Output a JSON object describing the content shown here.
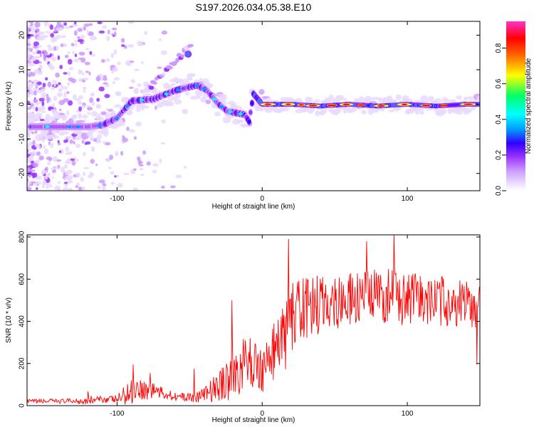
{
  "title": "S197.2026.034.05.38.E10",
  "chart_data": [
    {
      "type": "heatmap",
      "title": "S197.2026.034.05.38.E10",
      "xlabel": "Height of straight line (km)",
      "ylabel": "Frequency (Hz)",
      "xlim": [
        -162,
        150
      ],
      "ylim": [
        -25,
        24
      ],
      "x_ticks": [
        -100,
        0,
        100
      ],
      "x_tick_labels": [
        "-100",
        "0",
        "100"
      ],
      "y_ticks": [
        -20,
        -10,
        0,
        10,
        20
      ],
      "y_tick_labels": [
        "-20",
        "-10",
        "0",
        "10",
        "20"
      ],
      "ridge": {
        "description": "dominant frequency ridge (Hz) vs height (km)",
        "x": [
          -162,
          -140,
          -120,
          -110,
          -100,
          -90,
          -75,
          -60,
          -45,
          -38,
          -30,
          -24,
          -18,
          -12,
          -9,
          -6,
          0,
          10,
          20,
          40,
          60,
          80,
          100,
          120,
          140,
          150
        ],
        "y": [
          -6.5,
          -6.5,
          -6.5,
          -6,
          -4,
          1,
          1.5,
          4,
          5.5,
          4,
          0,
          -2,
          -2.5,
          -3,
          -5,
          3,
          0,
          0,
          0,
          -0.5,
          0,
          -0.5,
          0,
          -0.5,
          0,
          0
        ]
      },
      "colorbar": {
        "label": "Normalized spectral amplitude",
        "range": [
          0,
          0.95
        ],
        "ticks": [
          0.0,
          0.2,
          0.4,
          0.6,
          0.8
        ],
        "tick_labels": [
          "0.0",
          "0.2",
          "0.4",
          "0.6",
          "0.8"
        ],
        "colors": [
          "#ffffff",
          "#e8d8ff",
          "#cc99ff",
          "#9933ff",
          "#3300ff",
          "#0099ff",
          "#00ffff",
          "#00ff66",
          "#ffff00",
          "#ff6600",
          "#ff0000",
          "#ff33cc"
        ]
      }
    },
    {
      "type": "line",
      "xlabel": "Height of straight line (km)",
      "ylabel": "SNR (10 * v/v)",
      "xlim": [
        -162,
        150
      ],
      "ylim": [
        0,
        810
      ],
      "x_ticks": [
        -100,
        0,
        100
      ],
      "x_tick_labels": [
        "-100",
        "0",
        "100"
      ],
      "y_ticks": [
        0,
        200,
        400,
        600,
        800
      ],
      "y_tick_labels": [
        "0",
        "200",
        "400",
        "600",
        "800"
      ],
      "series": [
        {
          "name": "SNR",
          "color": "#ff0000",
          "envelope_x": [
            -162,
            -130,
            -120,
            -110,
            -100,
            -92,
            -86,
            -80,
            -75,
            -70,
            -55,
            -45,
            -38,
            -30,
            -25,
            -20,
            -15,
            -10,
            -5,
            0,
            10,
            18,
            20,
            30,
            40,
            50,
            60,
            80,
            92,
            100,
            120,
            140,
            150
          ],
          "envelope_base": [
            20,
            22,
            25,
            30,
            30,
            60,
            90,
            70,
            80,
            60,
            40,
            40,
            60,
            90,
            130,
            160,
            180,
            200,
            200,
            170,
            280,
            350,
            420,
            460,
            480,
            500,
            500,
            520,
            520,
            500,
            500,
            480,
            470
          ],
          "envelope_amp": [
            10,
            12,
            20,
            15,
            20,
            60,
            60,
            50,
            50,
            30,
            20,
            25,
            40,
            80,
            110,
            130,
            140,
            130,
            120,
            110,
            140,
            170,
            170,
            150,
            140,
            140,
            130,
            130,
            140,
            130,
            120,
            120,
            120
          ],
          "peaks": [
            {
              "x": -120,
              "y": 68
            },
            {
              "x": -89,
              "y": 195
            },
            {
              "x": -77,
              "y": 155
            },
            {
              "x": -47,
              "y": 175
            },
            {
              "x": -21,
              "y": 500
            },
            {
              "x": 18,
              "y": 790
            },
            {
              "x": 72,
              "y": 780
            },
            {
              "x": 91,
              "y": 810
            },
            {
              "x": 148,
              "y": 195
            }
          ]
        }
      ]
    }
  ]
}
